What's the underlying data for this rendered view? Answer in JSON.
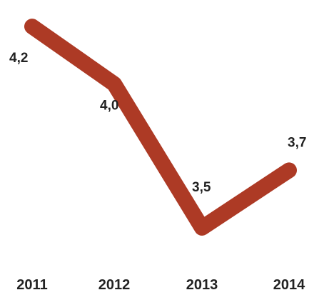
{
  "chart_data": {
    "type": "line",
    "categories": [
      "2011",
      "2012",
      "2013",
      "2014"
    ],
    "values": [
      4.2,
      4.0,
      3.5,
      3.7
    ],
    "value_labels": [
      "4,2",
      "4,0",
      "3,5",
      "3,7"
    ],
    "title": "",
    "xlabel": "",
    "ylabel": "",
    "ylim": [
      3.45,
      4.25
    ],
    "grid": false,
    "legend": "none",
    "line_color": "#ad3a25",
    "text_color": "#222222",
    "background_color": "#ffffff"
  }
}
